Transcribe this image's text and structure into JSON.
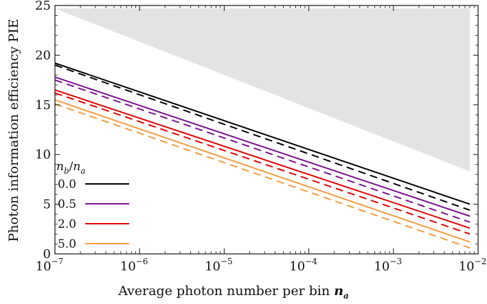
{
  "chart_data": {
    "type": "line",
    "xlabel": "Average photon number per bin",
    "xlabel_symbol": "n",
    "xlabel_symbol_sub": "a",
    "ylabel": "Photon information efficiency PIE",
    "x_scale": "log",
    "xlim": [
      1e-07,
      0.01
    ],
    "ylim": [
      0,
      25
    ],
    "x_tick_labels": [
      "10",
      "10",
      "10",
      "10",
      "10",
      "10"
    ],
    "x_tick_exponents": [
      "−7",
      "−6",
      "−5",
      "−4",
      "−3",
      "−2"
    ],
    "x_tick_values": [
      1e-07,
      1e-06,
      1e-05,
      0.0001,
      0.001,
      0.01
    ],
    "y_ticks": [
      0,
      5,
      10,
      15,
      20,
      25
    ],
    "grid": false,
    "legend": {
      "title": "n_b/n_a",
      "title_num": "n",
      "title_num_sub": "b",
      "title_den": "n",
      "title_den_sub": "a",
      "placement": "lower-left",
      "entries": [
        "0.0",
        "0.5",
        "2.0",
        "5.0"
      ]
    },
    "shaded_region": {
      "description": "infeasible region above upper bound",
      "color": "#e3e3e3",
      "x": [
        1e-07,
        0.008
      ],
      "upper": 24.7,
      "lower": [
        24.7,
        8.3
      ]
    },
    "x": [
      1e-07,
      0.008
    ],
    "series": [
      {
        "name": "0.0",
        "style": "solid",
        "color": "#000000",
        "values": [
          19.2,
          5.0
        ]
      },
      {
        "name": "0.0",
        "style": "dashed",
        "color": "#000000",
        "values": [
          19.0,
          4.4
        ]
      },
      {
        "name": "0.5",
        "style": "solid",
        "color": "#7b0f8e",
        "values": [
          17.8,
          3.8
        ]
      },
      {
        "name": "0.5",
        "style": "dashed",
        "color": "#7b0f8e",
        "values": [
          17.5,
          3.2
        ]
      },
      {
        "name": "2.0",
        "style": "solid",
        "color": "#e00000",
        "values": [
          16.5,
          2.6
        ]
      },
      {
        "name": "2.0",
        "style": "dashed",
        "color": "#e00000",
        "values": [
          16.2,
          2.0
        ]
      },
      {
        "name": "5.0",
        "style": "solid",
        "color": "#f59a3c",
        "values": [
          15.5,
          1.2
        ]
      },
      {
        "name": "5.0",
        "style": "dashed",
        "color": "#f59a3c",
        "values": [
          15.1,
          0.6
        ]
      }
    ]
  }
}
